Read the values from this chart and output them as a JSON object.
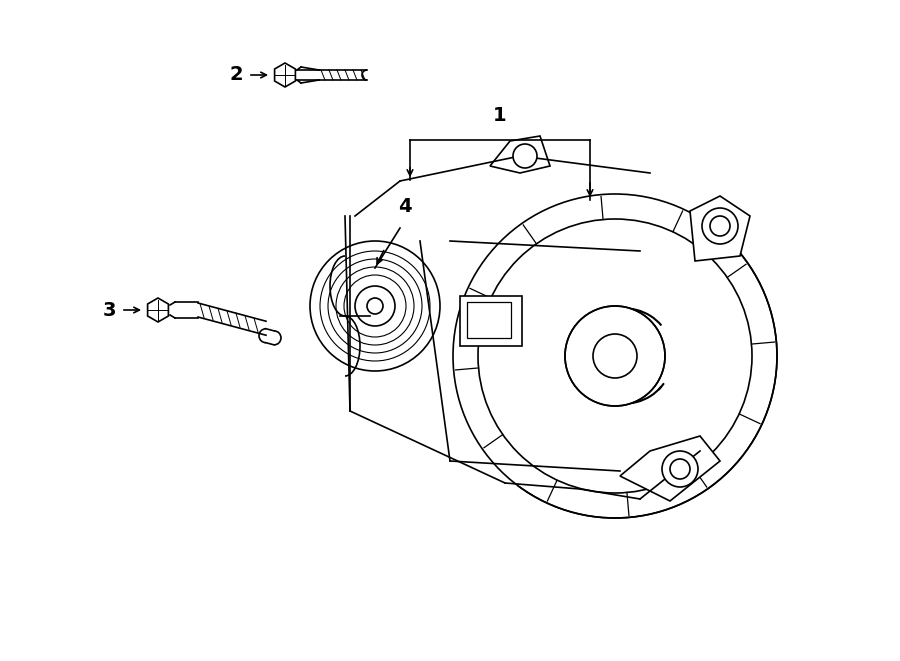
{
  "background_color": "#ffffff",
  "line_color": "#000000",
  "line_width": 1.2,
  "fig_width": 9.0,
  "fig_height": 6.61,
  "dpi": 100,
  "label_1": "1",
  "label_2": "2",
  "label_3": "3",
  "label_4": "4",
  "font_size_labels": 13,
  "arrow_color": "#000000"
}
